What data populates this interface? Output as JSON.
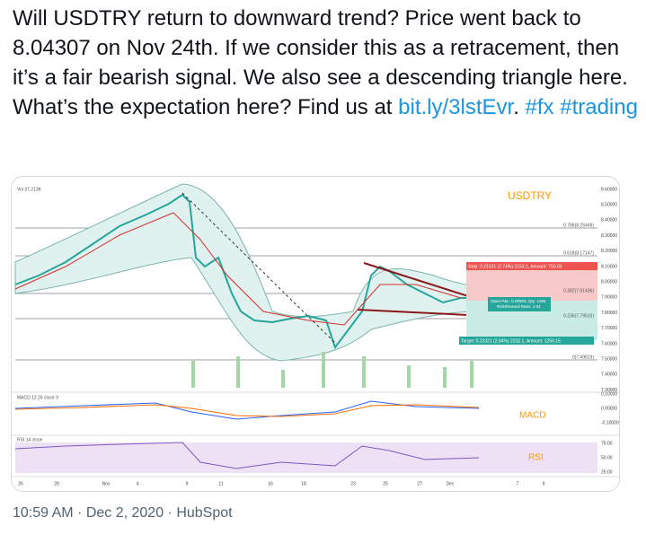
{
  "tweet": {
    "text": [
      "Will USDTRY return to downward trend? Price went back to 8.04307 on Nov 24th. If we consider this as a retracement, then it’s a fair bearish signal. We also see a descending triangle here. What’s the expectation here? Find us at ",
      "bit.ly/3lstEvr",
      ". ",
      "#fx",
      " ",
      "#trading"
    ],
    "meta": "10:59 AM · Dec 2, 2020 · HubSpot"
  },
  "image": {
    "symbol": "USDTRY",
    "volume_label": "Vol 37.213K",
    "macd_label": "MACD 12 26 close 9",
    "macd_panel": "MACD",
    "rsi_label": "RSI 14 close",
    "rsi_panel": "RSI",
    "price_axis": [
      "8.60000",
      "8.50000",
      "8.40000",
      "8.30000",
      "8.20000",
      "8.10000",
      "8.00000",
      "7.90000",
      "7.80000",
      "7.70000",
      "7.60000",
      "7.50000",
      "7.40000",
      "7.30000"
    ],
    "macd_axis": [
      "0.10000",
      "0.00000",
      "-0.10000"
    ],
    "rsi_axis": [
      "75.00",
      "50.00",
      "25.00"
    ],
    "time_axis": [
      "26",
      "28",
      "Nov",
      "4",
      "9",
      "11",
      "16",
      "18",
      "23",
      "25",
      "27",
      "Dec",
      "7",
      "9"
    ],
    "fib_levels": [
      "0.786(8.25449)",
      "0.618(8.17147)",
      "0.382(7.91436)",
      "0.236(7.79510)",
      "0(7.49819)"
    ],
    "stop_label": "Stop: 0.21531 (2.74%) 2153.1, Amount: 750.03",
    "position_label": "Open P&L: 0.00903, Qty: 1365",
    "ratio_label": "Risk/Reward Ratio: 1.04",
    "target_label": "Target: 0.22321 (2.84%) 2232.1, Amount: 1259.15"
  }
}
